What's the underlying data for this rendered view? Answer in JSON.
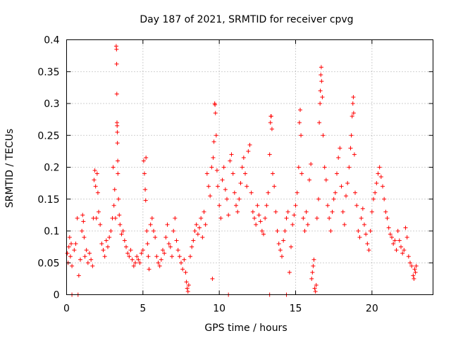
{
  "chart_data": {
    "type": "scatter",
    "title": "Day 187 of 2021, SRMTID for receiver cpvg",
    "xlabel": "GPS time / hours",
    "ylabel": "SRMTID / TECUs",
    "xlim": [
      0,
      24
    ],
    "ylim": [
      0,
      0.4
    ],
    "xticks": [
      0,
      5,
      10,
      15,
      20
    ],
    "xtick_labels": [
      "0",
      "5",
      "10",
      "15",
      "20"
    ],
    "yticks": [
      0,
      0.05,
      0.1,
      0.15,
      0.2,
      0.25,
      0.3,
      0.35,
      0.4
    ],
    "ytick_labels": [
      "0",
      "0.05",
      "0.1",
      "0.15",
      "0.2",
      "0.25",
      "0.3",
      "0.35",
      "0.4"
    ],
    "grid": true,
    "marker": "plus",
    "color": "#ff0000",
    "series": [
      {
        "name": "SRMTID",
        "points": [
          [
            0.05,
            0.065
          ],
          [
            0.1,
            0.05
          ],
          [
            0.15,
            0.075
          ],
          [
            0.2,
            0.09
          ],
          [
            0.25,
            0.06
          ],
          [
            0.3,
            0.08
          ],
          [
            0.35,
            0.045
          ],
          [
            0.5,
            0.07
          ],
          [
            0.6,
            0.08
          ],
          [
            0.7,
            0.12
          ],
          [
            0.8,
            0.03
          ],
          [
            0.9,
            0.055
          ],
          [
            1.0,
            0.1
          ],
          [
            1.05,
            0.125
          ],
          [
            1.1,
            0.115
          ],
          [
            1.15,
            0.09
          ],
          [
            1.2,
            0.06
          ],
          [
            1.3,
            0.07
          ],
          [
            1.4,
            0.05
          ],
          [
            1.5,
            0.065
          ],
          [
            1.6,
            0.055
          ],
          [
            1.7,
            0.045
          ],
          [
            1.75,
            0.12
          ],
          [
            1.8,
            0.18
          ],
          [
            1.85,
            0.195
          ],
          [
            1.9,
            0.17
          ],
          [
            1.95,
            0.12
          ],
          [
            2.0,
            0.19
          ],
          [
            2.05,
            0.16
          ],
          [
            2.1,
            0.13
          ],
          [
            2.2,
            0.11
          ],
          [
            2.3,
            0.08
          ],
          [
            2.4,
            0.07
          ],
          [
            2.5,
            0.06
          ],
          [
            2.6,
            0.085
          ],
          [
            2.7,
            0.075
          ],
          [
            2.8,
            0.09
          ],
          [
            2.9,
            0.1
          ],
          [
            3.0,
            0.12
          ],
          [
            3.05,
            0.2
          ],
          [
            3.1,
            0.14
          ],
          [
            3.15,
            0.165
          ],
          [
            3.2,
            0.12
          ],
          [
            3.25,
            0.39
          ],
          [
            3.27,
            0.385
          ],
          [
            3.28,
            0.362
          ],
          [
            3.29,
            0.315
          ],
          [
            3.3,
            0.27
          ],
          [
            3.31,
            0.265
          ],
          [
            3.32,
            0.255
          ],
          [
            3.33,
            0.238
          ],
          [
            3.35,
            0.21
          ],
          [
            3.36,
            0.19
          ],
          [
            3.4,
            0.15
          ],
          [
            3.45,
            0.125
          ],
          [
            3.5,
            0.11
          ],
          [
            3.6,
            0.095
          ],
          [
            3.7,
            0.1
          ],
          [
            3.8,
            0.085
          ],
          [
            3.9,
            0.075
          ],
          [
            4.0,
            0.065
          ],
          [
            4.1,
            0.06
          ],
          [
            4.2,
            0.07
          ],
          [
            4.3,
            0.055
          ],
          [
            4.4,
            0.045
          ],
          [
            4.5,
            0.05
          ],
          [
            4.6,
            0.06
          ],
          [
            4.7,
            0.055
          ],
          [
            4.8,
            0.05
          ],
          [
            4.9,
            0.065
          ],
          [
            5.0,
            0.07
          ],
          [
            5.05,
            0.21
          ],
          [
            5.1,
            0.19
          ],
          [
            5.15,
            0.165
          ],
          [
            5.18,
            0.148
          ],
          [
            5.2,
            0.215
          ],
          [
            5.25,
            0.1
          ],
          [
            5.3,
            0.08
          ],
          [
            5.35,
            0.06
          ],
          [
            5.4,
            0.04
          ],
          [
            5.5,
            0.11
          ],
          [
            5.6,
            0.12
          ],
          [
            5.7,
            0.1
          ],
          [
            5.8,
            0.09
          ],
          [
            5.9,
            0.06
          ],
          [
            6.0,
            0.05
          ],
          [
            6.1,
            0.045
          ],
          [
            6.2,
            0.055
          ],
          [
            6.3,
            0.07
          ],
          [
            6.4,
            0.065
          ],
          [
            6.5,
            0.09
          ],
          [
            6.6,
            0.11
          ],
          [
            6.7,
            0.08
          ],
          [
            6.8,
            0.075
          ],
          [
            6.9,
            0.06
          ],
          [
            7.0,
            0.1
          ],
          [
            7.1,
            0.12
          ],
          [
            7.2,
            0.085
          ],
          [
            7.3,
            0.07
          ],
          [
            7.4,
            0.06
          ],
          [
            7.5,
            0.05
          ],
          [
            7.6,
            0.04
          ],
          [
            7.7,
            0.055
          ],
          [
            7.8,
            0.035
          ],
          [
            7.85,
            0.02
          ],
          [
            7.9,
            0.01
          ],
          [
            7.95,
            0.005
          ],
          [
            8.0,
            0.015
          ],
          [
            8.1,
            0.06
          ],
          [
            8.2,
            0.075
          ],
          [
            8.3,
            0.085
          ],
          [
            8.4,
            0.1
          ],
          [
            8.5,
            0.11
          ],
          [
            8.6,
            0.095
          ],
          [
            8.7,
            0.105
          ],
          [
            8.8,
            0.12
          ],
          [
            8.9,
            0.09
          ],
          [
            9.0,
            0.13
          ],
          [
            9.1,
            0.11
          ],
          [
            9.2,
            0.19
          ],
          [
            9.3,
            0.17
          ],
          [
            9.4,
            0.155
          ],
          [
            9.5,
            0.2
          ],
          [
            9.55,
            0.025
          ],
          [
            9.6,
            0.215
          ],
          [
            9.65,
            0.24
          ],
          [
            9.7,
            0.3
          ],
          [
            9.72,
            0.298
          ],
          [
            9.75,
            0.285
          ],
          [
            9.8,
            0.25
          ],
          [
            9.85,
            0.195
          ],
          [
            9.9,
            0.17
          ],
          [
            10.0,
            0.14
          ],
          [
            10.1,
            0.12
          ],
          [
            10.2,
            0.18
          ],
          [
            10.3,
            0.2
          ],
          [
            10.4,
            0.165
          ],
          [
            10.5,
            0.15
          ],
          [
            10.6,
            0.125
          ],
          [
            10.7,
            0.21
          ],
          [
            10.8,
            0.22
          ],
          [
            10.9,
            0.19
          ],
          [
            11.0,
            0.16
          ],
          [
            11.1,
            0.14
          ],
          [
            11.2,
            0.13
          ],
          [
            11.3,
            0.15
          ],
          [
            11.4,
            0.175
          ],
          [
            11.5,
            0.2
          ],
          [
            11.6,
            0.215
          ],
          [
            11.7,
            0.19
          ],
          [
            11.8,
            0.17
          ],
          [
            11.9,
            0.225
          ],
          [
            12.0,
            0.235
          ],
          [
            12.1,
            0.16
          ],
          [
            12.2,
            0.13
          ],
          [
            12.3,
            0.12
          ],
          [
            12.4,
            0.11
          ],
          [
            12.5,
            0.14
          ],
          [
            12.6,
            0.125
          ],
          [
            12.7,
            0.115
          ],
          [
            12.8,
            0.1
          ],
          [
            12.9,
            0.095
          ],
          [
            13.0,
            0.12
          ],
          [
            13.1,
            0.14
          ],
          [
            13.2,
            0.16
          ],
          [
            13.3,
            0.22
          ],
          [
            13.35,
            0.27
          ],
          [
            13.38,
            0.28
          ],
          [
            13.4,
            0.28
          ],
          [
            13.45,
            0.26
          ],
          [
            13.5,
            0.19
          ],
          [
            13.6,
            0.17
          ],
          [
            13.7,
            0.13
          ],
          [
            13.8,
            0.1
          ],
          [
            13.9,
            0.08
          ],
          [
            14.0,
            0.07
          ],
          [
            14.1,
            0.06
          ],
          [
            14.2,
            0.085
          ],
          [
            14.3,
            0.1
          ],
          [
            14.4,
            0.12
          ],
          [
            14.5,
            0.13
          ],
          [
            14.6,
            0.035
          ],
          [
            14.7,
            0.075
          ],
          [
            14.8,
            0.11
          ],
          [
            14.9,
            0.125
          ],
          [
            15.0,
            0.14
          ],
          [
            15.1,
            0.16
          ],
          [
            15.2,
            0.2
          ],
          [
            15.25,
            0.27
          ],
          [
            15.3,
            0.29
          ],
          [
            15.35,
            0.25
          ],
          [
            15.4,
            0.19
          ],
          [
            15.5,
            0.12
          ],
          [
            15.6,
            0.1
          ],
          [
            15.7,
            0.13
          ],
          [
            15.8,
            0.11
          ],
          [
            15.9,
            0.18
          ],
          [
            16.0,
            0.205
          ],
          [
            16.05,
            0.025
          ],
          [
            16.1,
            0.035
          ],
          [
            16.15,
            0.045
          ],
          [
            16.2,
            0.055
          ],
          [
            16.25,
            0.01
          ],
          [
            16.3,
            0.005
          ],
          [
            16.35,
            0.015
          ],
          [
            16.4,
            0.12
          ],
          [
            16.5,
            0.15
          ],
          [
            16.55,
            0.27
          ],
          [
            16.6,
            0.3
          ],
          [
            16.62,
            0.32
          ],
          [
            16.65,
            0.345
          ],
          [
            16.68,
            0.357
          ],
          [
            16.7,
            0.335
          ],
          [
            16.75,
            0.31
          ],
          [
            16.8,
            0.25
          ],
          [
            16.9,
            0.2
          ],
          [
            17.0,
            0.18
          ],
          [
            17.1,
            0.14
          ],
          [
            17.2,
            0.12
          ],
          [
            17.3,
            0.1
          ],
          [
            17.4,
            0.13
          ],
          [
            17.5,
            0.15
          ],
          [
            17.6,
            0.16
          ],
          [
            17.7,
            0.19
          ],
          [
            17.8,
            0.215
          ],
          [
            17.9,
            0.23
          ],
          [
            18.0,
            0.17
          ],
          [
            18.1,
            0.13
          ],
          [
            18.2,
            0.11
          ],
          [
            18.3,
            0.155
          ],
          [
            18.4,
            0.175
          ],
          [
            18.5,
            0.2
          ],
          [
            18.6,
            0.23
          ],
          [
            18.65,
            0.25
          ],
          [
            18.7,
            0.28
          ],
          [
            18.75,
            0.3
          ],
          [
            18.78,
            0.31
          ],
          [
            18.8,
            0.285
          ],
          [
            18.85,
            0.22
          ],
          [
            18.9,
            0.16
          ],
          [
            19.0,
            0.14
          ],
          [
            19.1,
            0.1
          ],
          [
            19.2,
            0.09
          ],
          [
            19.3,
            0.12
          ],
          [
            19.4,
            0.135
          ],
          [
            19.5,
            0.11
          ],
          [
            19.6,
            0.095
          ],
          [
            19.7,
            0.08
          ],
          [
            19.8,
            0.07
          ],
          [
            19.9,
            0.1
          ],
          [
            20.0,
            0.13
          ],
          [
            20.1,
            0.15
          ],
          [
            20.2,
            0.16
          ],
          [
            20.3,
            0.175
          ],
          [
            20.4,
            0.19
          ],
          [
            20.5,
            0.2
          ],
          [
            20.6,
            0.185
          ],
          [
            20.7,
            0.17
          ],
          [
            20.8,
            0.15
          ],
          [
            20.9,
            0.13
          ],
          [
            21.0,
            0.12
          ],
          [
            21.1,
            0.105
          ],
          [
            21.2,
            0.095
          ],
          [
            21.3,
            0.09
          ],
          [
            21.4,
            0.08
          ],
          [
            21.5,
            0.085
          ],
          [
            21.6,
            0.07
          ],
          [
            21.7,
            0.1
          ],
          [
            21.8,
            0.085
          ],
          [
            21.9,
            0.075
          ],
          [
            22.0,
            0.065
          ],
          [
            22.1,
            0.07
          ],
          [
            22.2,
            0.105
          ],
          [
            22.3,
            0.09
          ],
          [
            22.4,
            0.06
          ],
          [
            22.5,
            0.05
          ],
          [
            22.6,
            0.045
          ],
          [
            22.7,
            0.03
          ],
          [
            22.75,
            0.025
          ],
          [
            22.8,
            0.04
          ],
          [
            22.85,
            0.035
          ],
          [
            22.9,
            0.045
          ],
          [
            0.35,
            0.0
          ],
          [
            0.75,
            0.0
          ],
          [
            10.6,
            0.0
          ],
          [
            13.3,
            0.0
          ],
          [
            14.4,
            0.0
          ]
        ]
      }
    ]
  }
}
